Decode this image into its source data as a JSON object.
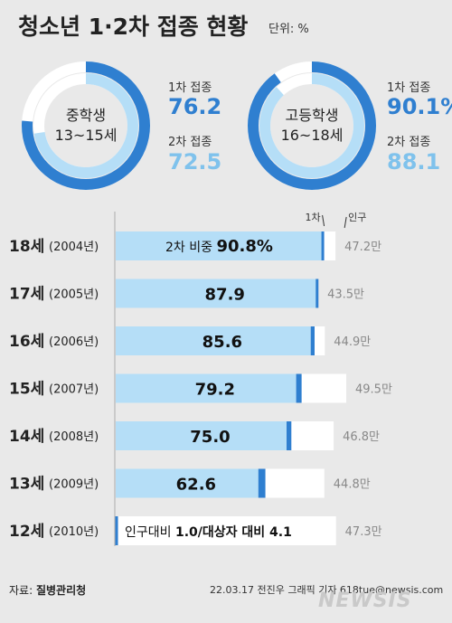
{
  "header": {
    "title": "청소년 1·2차 접종 현황",
    "unit": "단위: %"
  },
  "donuts": [
    {
      "group_line1": "중학생",
      "group_line2": "13~15세",
      "dose1_label": "1차 접종",
      "dose1_value": 76.2,
      "dose1_text": "76.2",
      "dose2_label": "2차 접종",
      "dose2_value": 72.5,
      "dose2_text": "72.5"
    },
    {
      "group_line1": "고등학생",
      "group_line2": "16~18세",
      "dose1_label": "1차 접종",
      "dose1_value": 90.1,
      "dose1_text": "90.1%",
      "dose2_label": "2차 접종",
      "dose2_value": 88.1,
      "dose2_text": "88.1"
    }
  ],
  "chart_data": {
    "type": "bar",
    "header_labels": {
      "dose1": "1차",
      "population": "인구"
    },
    "colors": {
      "dose2": "#b5def7",
      "dose1": "#2f7fd0",
      "population": "#ffffff"
    },
    "rows": [
      {
        "age": "18세",
        "year": "(2004년)",
        "dose2": 90.8,
        "dose1": 91.5,
        "value_prefix": "2차 비중 ",
        "value_text": "90.8%",
        "pop_text": "47.2만",
        "pop": 47.2
      },
      {
        "age": "17세",
        "year": "(2005년)",
        "dose2": 87.9,
        "dose1": 89.0,
        "value_prefix": "",
        "value_text": "87.9",
        "pop_text": "43.5만",
        "pop": 43.5
      },
      {
        "age": "16세",
        "year": "(2006년)",
        "dose2": 85.6,
        "dose1": 87.3,
        "value_prefix": "",
        "value_text": "85.6",
        "pop_text": "44.9만",
        "pop": 44.9
      },
      {
        "age": "15세",
        "year": "(2007년)",
        "dose2": 79.2,
        "dose1": 81.6,
        "value_prefix": "",
        "value_text": "79.2",
        "pop_text": "49.5만",
        "pop": 49.5
      },
      {
        "age": "14세",
        "year": "(2008년)",
        "dose2": 75.0,
        "dose1": 77.1,
        "value_prefix": "",
        "value_text": "75.0",
        "pop_text": "46.8만",
        "pop": 46.8
      },
      {
        "age": "13세",
        "year": "(2009년)",
        "dose2": 62.6,
        "dose1": 65.7,
        "value_prefix": "",
        "value_text": "62.6",
        "pop_text": "44.8만",
        "pop": 44.8
      },
      {
        "age": "12세",
        "year": "(2010년)",
        "dose2": 0,
        "dose1": 1.0,
        "value_prefix": "인구대비 ",
        "value_text": "1.0/대상자 대비 4.1",
        "pop_text": "47.3만",
        "pop": 47.3
      }
    ]
  },
  "footer": {
    "source_prefix": "자료: ",
    "source": "질병관리청",
    "credit": "22.03.17 전진우 그래픽 기자 618tue@newsis.com",
    "watermark": "NEWSIS"
  }
}
